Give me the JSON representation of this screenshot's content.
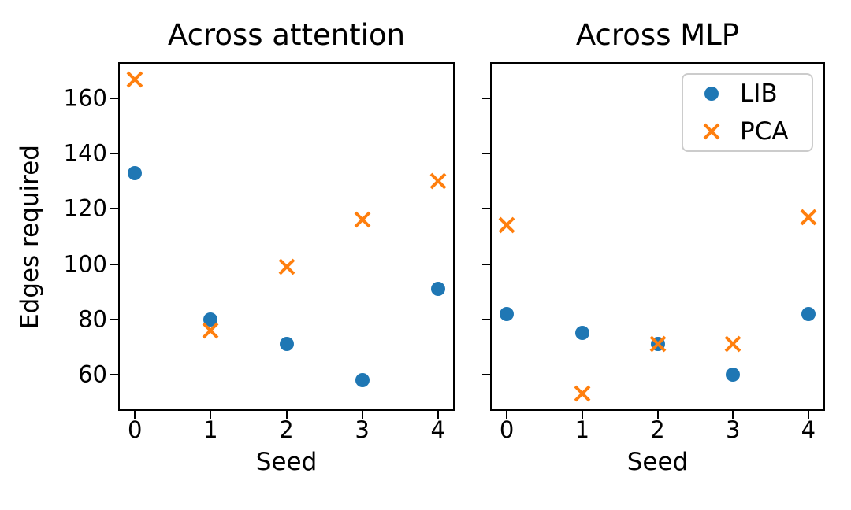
{
  "figure": {
    "background": "#ffffff",
    "shared_ylabel": "Edges required"
  },
  "legend": {
    "position": "upper right of second subplot",
    "items": [
      {
        "label": "LIB",
        "marker": "circle",
        "color": "#1f77b4"
      },
      {
        "label": "PCA",
        "marker": "x",
        "color": "#ff7f0e"
      }
    ]
  },
  "chart_data": [
    {
      "type": "scatter",
      "title": "Across attention",
      "xlabel": "Seed",
      "ylabel": "Edges required",
      "x": [
        0,
        1,
        2,
        3,
        4
      ],
      "series": [
        {
          "name": "LIB",
          "marker": "circle",
          "color": "#1f77b4",
          "values": [
            133,
            80,
            71,
            58,
            91
          ]
        },
        {
          "name": "PCA",
          "marker": "x",
          "color": "#ff7f0e",
          "values": [
            167,
            76,
            99,
            116,
            130
          ]
        }
      ],
      "xlim": [
        -0.2,
        4.2
      ],
      "ylim": [
        47.3,
        172.7
      ],
      "xticks": [
        0,
        1,
        2,
        3,
        4
      ],
      "yticks": [
        60,
        80,
        100,
        120,
        140,
        160
      ],
      "ytick_labels": true,
      "grid": false,
      "legend": false
    },
    {
      "type": "scatter",
      "title": "Across MLP",
      "xlabel": "Seed",
      "ylabel": "",
      "x": [
        0,
        1,
        2,
        3,
        4
      ],
      "series": [
        {
          "name": "LIB",
          "marker": "circle",
          "color": "#1f77b4",
          "values": [
            82,
            75,
            71,
            60,
            82
          ]
        },
        {
          "name": "PCA",
          "marker": "x",
          "color": "#ff7f0e",
          "values": [
            114,
            53,
            71,
            71,
            117
          ]
        }
      ],
      "xlim": [
        -0.2,
        4.2
      ],
      "ylim": [
        47.3,
        172.7
      ],
      "xticks": [
        0,
        1,
        2,
        3,
        4
      ],
      "yticks": [
        60,
        80,
        100,
        120,
        140,
        160
      ],
      "ytick_labels": false,
      "grid": false,
      "legend": true
    }
  ]
}
